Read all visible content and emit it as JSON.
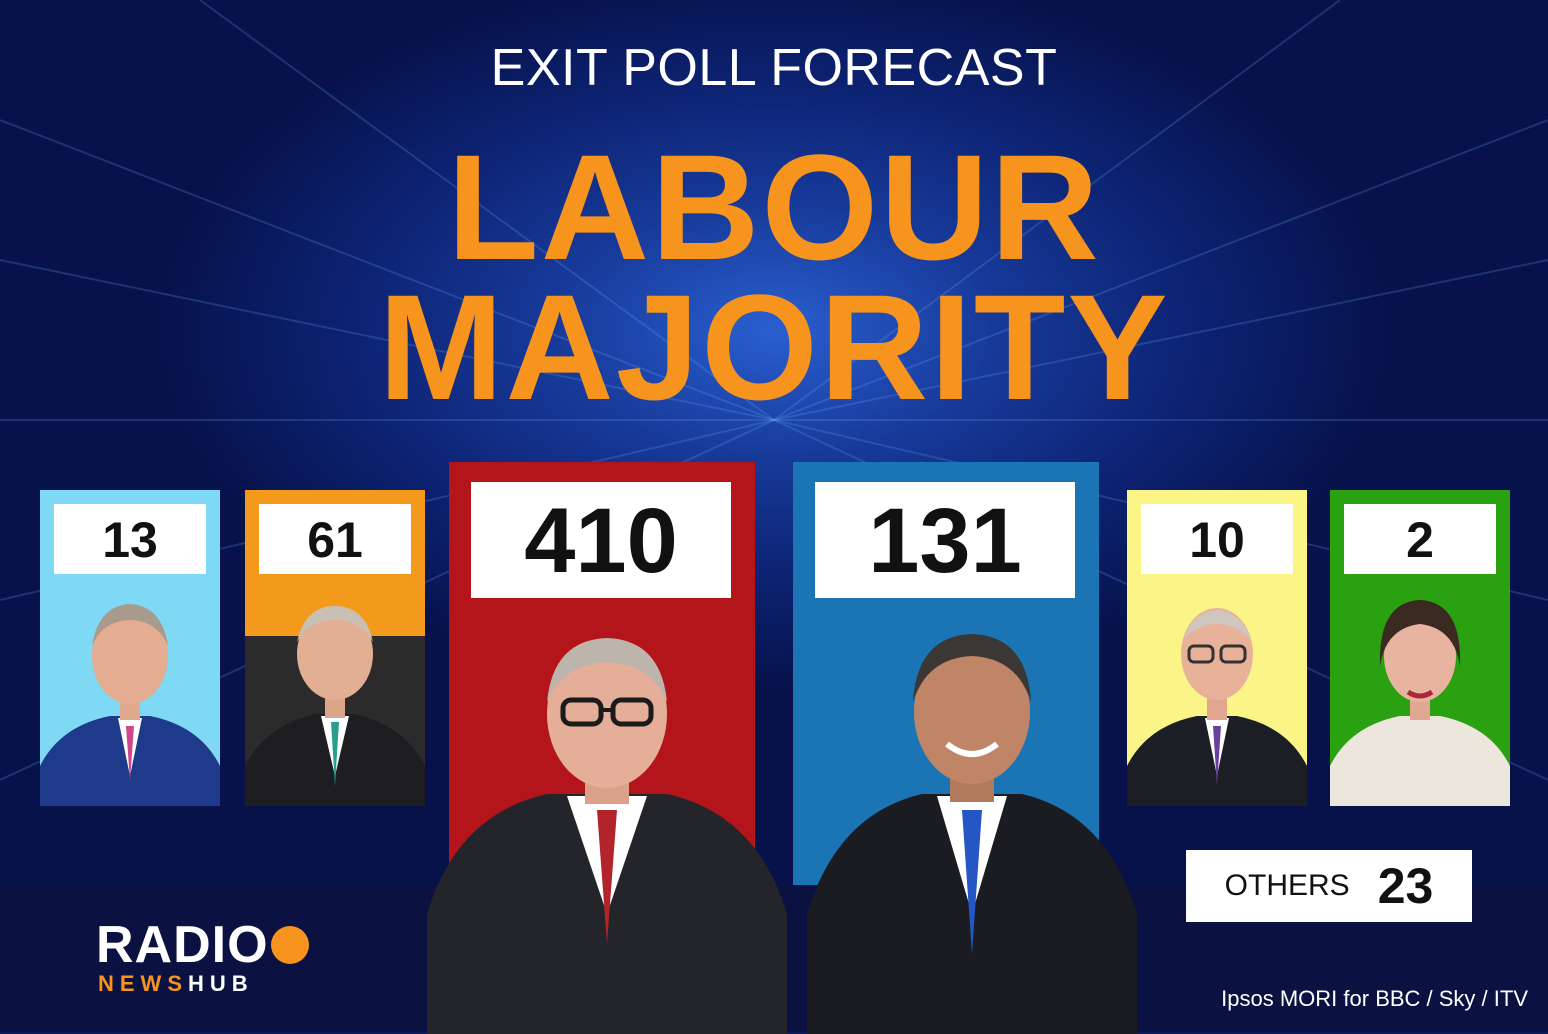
{
  "header": {
    "title": "EXIT POLL FORECAST",
    "headline_line1": "LABOUR",
    "headline_line2": "MAJORITY"
  },
  "colors": {
    "reform": "#7fd8f4",
    "libdem": "#f39a1c",
    "labour": "#b3151b",
    "conservative": "#1b74b4",
    "snp": "#fbf588",
    "green": "#2aa110",
    "accent": "#f7941d"
  },
  "parties": [
    {
      "id": "reform",
      "seats": "13"
    },
    {
      "id": "libdem",
      "seats": "61"
    },
    {
      "id": "labour",
      "seats": "410"
    },
    {
      "id": "conservative",
      "seats": "131"
    },
    {
      "id": "snp",
      "seats": "10"
    },
    {
      "id": "green",
      "seats": "2"
    }
  ],
  "others": {
    "label": "OTHERS",
    "seats": "23"
  },
  "logo": {
    "line1": "RADIO",
    "line2_a": "NEWS",
    "line2_b": "HUB"
  },
  "credit": "Ipsos MORI for BBC / Sky / ITV"
}
